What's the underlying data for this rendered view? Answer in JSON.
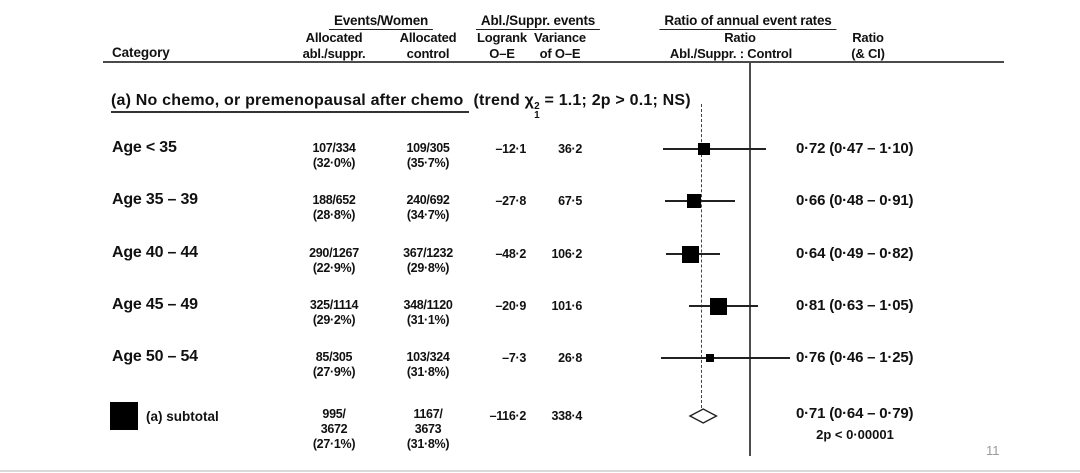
{
  "header": {
    "category_label": "Category",
    "group1_title": "Events/Women",
    "group2_title": "Abl./Suppr. events",
    "group3_title": "Ratio of annual event rates",
    "col_abl_line1": "Allocated",
    "col_abl_line2": "abl./suppr.",
    "col_ctrl_line1": "Allocated",
    "col_ctrl_line2": "control",
    "col_logrank_line1": "Logrank",
    "col_logrank_line2": "O–E",
    "col_var_line1": "Variance",
    "col_var_line2": "of O–E",
    "col_ratio_line1": "Ratio",
    "col_ratio_line2": "Abl./Suppr. : Control",
    "col_ratioci_line1": "Ratio",
    "col_ratioci_line2": "(& CI)"
  },
  "section": {
    "title": "(a) No chemo, or premenopausal after chemo",
    "trend_prefix": "(trend ",
    "chi_symbol": "χ",
    "chi_sup": "2",
    "chi_sub": "1",
    "trend_suffix": " = 1.1; 2p > 0.1; NS)"
  },
  "page_number": "11",
  "chart_data": {
    "type": "forest",
    "ratio_axis": {
      "reference_value": 1.0,
      "dashed_line_value": 0.71,
      "scale": "linear"
    },
    "rows": [
      {
        "label": "Age < 35",
        "events_abl": "107/334",
        "pct_abl": "(32·0%)",
        "events_ctrl": "109/305",
        "pct_ctrl": "(35·7%)",
        "logrank_oe": "–12·1",
        "variance": "36·2",
        "ratio": 0.72,
        "ci_low": 0.47,
        "ci_high": 1.1,
        "ratio_text": "0·72 (0·47 – 1·10)",
        "marker_size": 12
      },
      {
        "label": "Age 35 – 39",
        "events_abl": "188/652",
        "pct_abl": "(28·8%)",
        "events_ctrl": "240/692",
        "pct_ctrl": "(34·7%)",
        "logrank_oe": "–27·8",
        "variance": "67·5",
        "ratio": 0.66,
        "ci_low": 0.48,
        "ci_high": 0.91,
        "ratio_text": "0·66 (0·48 – 0·91)",
        "marker_size": 14
      },
      {
        "label": "Age 40 – 44",
        "events_abl": "290/1267",
        "pct_abl": "(22·9%)",
        "events_ctrl": "367/1232",
        "pct_ctrl": "(29·8%)",
        "logrank_oe": "–48·2",
        "variance": "106·2",
        "ratio": 0.64,
        "ci_low": 0.49,
        "ci_high": 0.82,
        "ratio_text": "0·64 (0·49 – 0·82)",
        "marker_size": 17
      },
      {
        "label": "Age 45 – 49",
        "events_abl": "325/1114",
        "pct_abl": "(29·2%)",
        "events_ctrl": "348/1120",
        "pct_ctrl": "(31·1%)",
        "logrank_oe": "–20·9",
        "variance": "101·6",
        "ratio": 0.81,
        "ci_low": 0.63,
        "ci_high": 1.05,
        "ratio_text": "0·81 (0·63 – 1·05)",
        "marker_size": 17
      },
      {
        "label": "Age 50 – 54",
        "events_abl": "85/305",
        "pct_abl": "(27·9%)",
        "events_ctrl": "103/324",
        "pct_ctrl": "(31·8%)",
        "logrank_oe": "–7·3",
        "variance": "26·8",
        "ratio": 0.76,
        "ci_low": 0.46,
        "ci_high": 1.25,
        "ratio_text": "0·76 (0·46 – 1·25)",
        "marker_size": 8
      }
    ],
    "subtotal": {
      "label": "(a) subtotal",
      "events_abl_lines": [
        "995/",
        "3672",
        "(27·1%)"
      ],
      "events_ctrl_lines": [
        "1167/",
        "3673",
        "(31·8%)"
      ],
      "logrank_oe": "–116·2",
      "variance": "338·4",
      "ratio": 0.71,
      "ci_low": 0.64,
      "ci_high": 0.79,
      "ratio_text": "0·71 (0·64 – 0·79)",
      "p_value": "2p < 0·00001"
    }
  }
}
